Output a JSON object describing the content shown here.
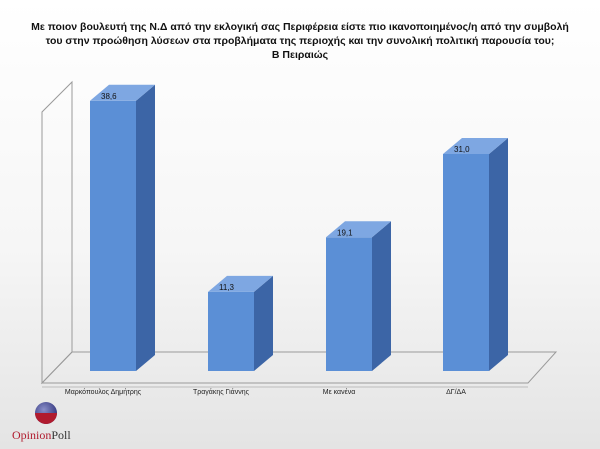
{
  "title_lines": [
    "Με ποιον βουλευτή της Ν.Δ από την εκλογική σας Περιφέρεια είστε πιο ικανοποιημένος/η από την συμβολή",
    "του στην προώθηση λύσεων στα προβλήματα της περιοχής και την συνολική πολιτική παρουσία του;",
    "Β Πειραιώς"
  ],
  "chart_data": {
    "type": "bar",
    "title": "Με ποιον βουλευτή της Ν.Δ από την εκλογική σας Περιφέρεια είστε πιο ικανοποιημένος/η από την συμβολή του στην προώθηση λύσεων στα προβλήματα της περιοχής και την συνολική πολιτική παρουσία του; Β Πειραιώς",
    "categories": [
      "Μαρκόπουλος Δημήτρης",
      "Τραγάκης Γιάννης",
      "Με κανένα",
      "ΔΓ/ΔΑ"
    ],
    "values": [
      38.6,
      11.3,
      19.1,
      31.0
    ],
    "data_labels": [
      "38,6",
      "11,3",
      "19,1",
      "31,0"
    ],
    "ylim": [
      0,
      45
    ],
    "grid": false,
    "colors": {
      "bar_front": "#5b8fd6",
      "bar_side": "#3c65a6",
      "bar_top": "#7ea7e2"
    }
  },
  "logo": {
    "opinion": "Opinion",
    "poll": "Poll"
  }
}
